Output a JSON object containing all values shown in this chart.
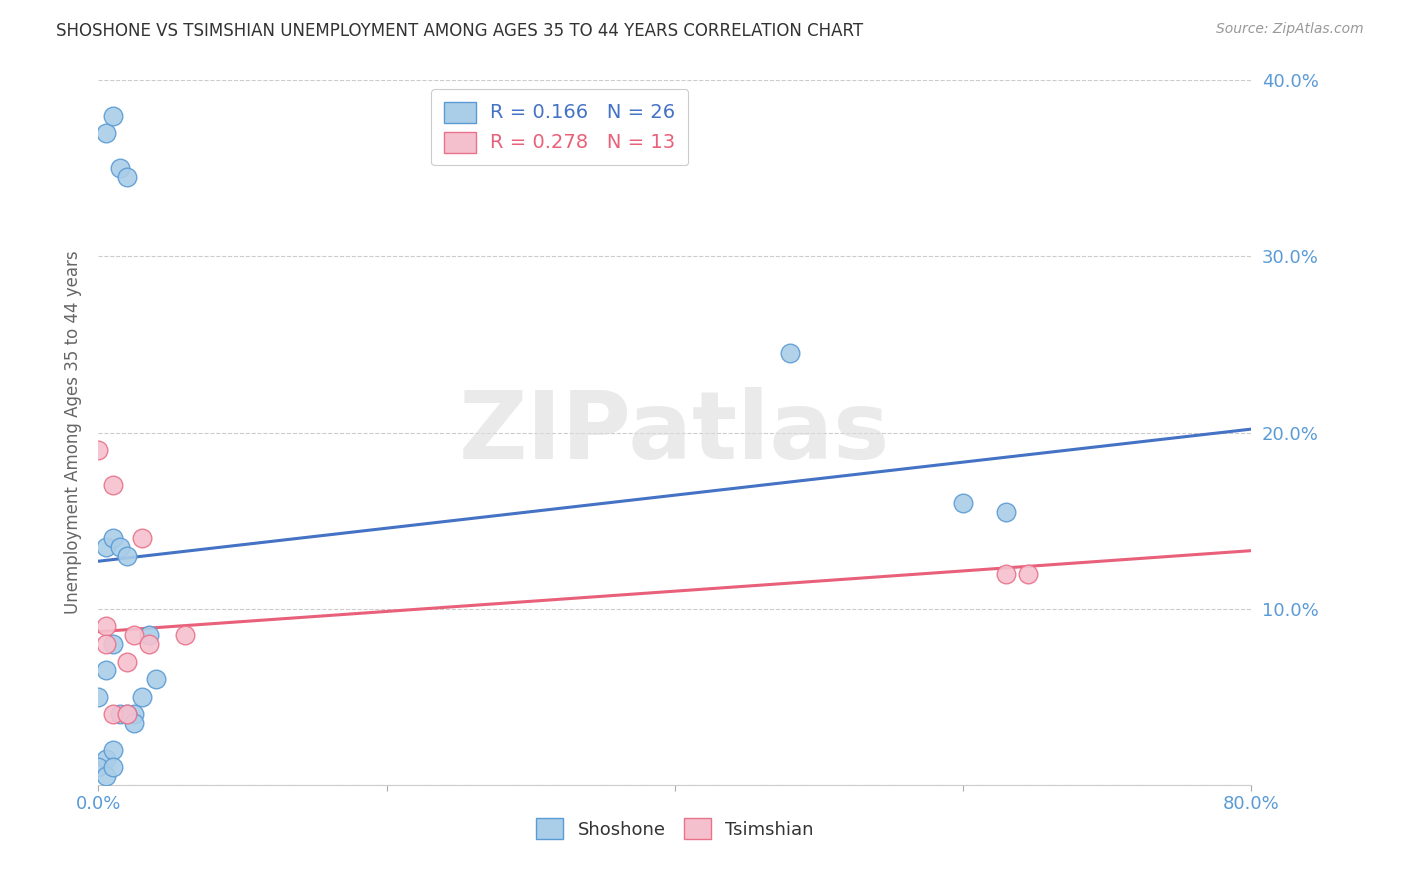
{
  "title": "SHOSHONE VS TSIMSHIAN UNEMPLOYMENT AMONG AGES 35 TO 44 YEARS CORRELATION CHART",
  "source": "Source: ZipAtlas.com",
  "ylabel": "Unemployment Among Ages 35 to 44 years",
  "xlim": [
    0.0,
    0.8
  ],
  "ylim": [
    0.0,
    0.4
  ],
  "xticks": [
    0.0,
    0.2,
    0.4,
    0.6,
    0.8
  ],
  "xtick_labels": [
    "0.0%",
    "",
    "",
    "",
    "80.0%"
  ],
  "yticks": [
    0.0,
    0.1,
    0.2,
    0.3,
    0.4
  ],
  "ytick_labels_right": [
    "",
    "10.0%",
    "20.0%",
    "30.0%",
    "40.0%"
  ],
  "shoshone_color": "#aacde8",
  "tsimshian_color": "#f5c0ce",
  "shoshone_edge_color": "#5b9bd5",
  "tsimshian_edge_color": "#e8728a",
  "shoshone_line_color": "#4472c4",
  "tsimshian_line_color": "#e8607a",
  "shoshone_R": "0.166",
  "shoshone_N": "26",
  "tsimshian_R": "0.278",
  "tsimshian_N": "13",
  "shoshone_points_x": [
    0.005,
    0.01,
    0.015,
    0.02,
    0.0,
    0.005,
    0.01,
    0.005,
    0.01,
    0.015,
    0.02,
    0.025,
    0.03,
    0.04,
    0.005,
    0.01,
    0.015,
    0.02,
    0.025,
    0.0,
    0.005,
    0.01,
    0.035,
    0.48,
    0.6,
    0.63
  ],
  "shoshone_points_y": [
    0.37,
    0.38,
    0.35,
    0.345,
    0.05,
    0.065,
    0.08,
    0.135,
    0.14,
    0.135,
    0.13,
    0.04,
    0.05,
    0.06,
    0.015,
    0.02,
    0.04,
    0.04,
    0.035,
    0.01,
    0.005,
    0.01,
    0.085,
    0.245,
    0.16,
    0.155
  ],
  "tsimshian_points_x": [
    0.0,
    0.005,
    0.005,
    0.01,
    0.01,
    0.02,
    0.02,
    0.025,
    0.03,
    0.035,
    0.06,
    0.63,
    0.645
  ],
  "tsimshian_points_y": [
    0.19,
    0.09,
    0.08,
    0.17,
    0.04,
    0.07,
    0.04,
    0.085,
    0.14,
    0.08,
    0.085,
    0.12,
    0.12
  ],
  "shoshone_trendline_x": [
    0.0,
    0.8
  ],
  "shoshone_trendline_y": [
    0.127,
    0.202
  ],
  "tsimshian_trendline_x": [
    0.0,
    0.8
  ],
  "tsimshian_trendline_y": [
    0.087,
    0.133
  ],
  "grid_color": "#cccccc",
  "axis_tick_color": "#5b9bd5",
  "ylabel_color": "#666666",
  "title_color": "#333333",
  "source_color": "#999999",
  "background_color": "#ffffff",
  "watermark_text": "ZIPatlas",
  "watermark_color": "#dddddd",
  "legend_shoshone_label": "R = 0.166   N = 26",
  "legend_tsimshian_label": "R = 0.278   N = 13",
  "bottom_legend_shoshone": "Shoshone",
  "bottom_legend_tsimshian": "Tsimshian"
}
